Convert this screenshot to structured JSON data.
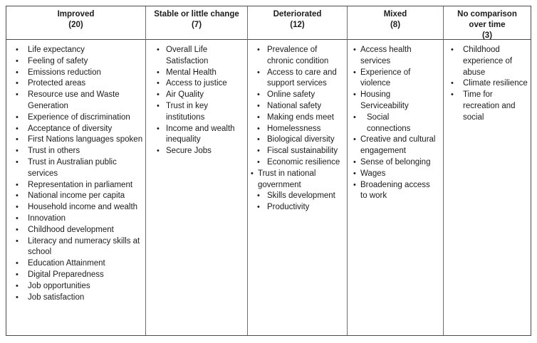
{
  "table": {
    "columns": [
      {
        "header": "Improved",
        "count": "(20)",
        "items": [
          "Life expectancy",
          "Feeling of safety",
          "Emissions reduction",
          "Protected areas",
          "Resource use and Waste Generation",
          "Experience of discrimination",
          "Acceptance of diversity",
          "First Nations languages spoken",
          "Trust in others",
          "Trust in Australian public services",
          "Representation in parliament",
          "National income per capita",
          "Household income and wealth",
          "Innovation",
          "Childhood development",
          "Literacy and numeracy skills at school",
          "Education Attainment",
          "Digital Preparedness",
          "Job opportunities",
          "Job satisfaction"
        ]
      },
      {
        "header": "Stable or little change",
        "count": "(7)",
        "items": [
          "Overall Life Satisfaction",
          "Mental Health",
          "Access to justice",
          "Air Quality",
          "Trust in key institutions",
          "Income and wealth inequality",
          "Secure Jobs"
        ]
      },
      {
        "header": "Deteriorated",
        "count": "(12)",
        "items": [
          "Prevalence of chronic condition",
          "Access to care and support services",
          "Online safety",
          "National safety",
          "Making ends meet",
          "Homelessness",
          "Biological diversity",
          "Fiscal sustainability",
          "Economic resilience",
          "Trust in national government",
          "Skills development",
          "Productivity"
        ]
      },
      {
        "header": "Mixed",
        "count": "(8)",
        "items": [
          "Access health services",
          "Experience of violence",
          "Housing Serviceability",
          "Social connections",
          "Creative and cultural engagement",
          "Sense of belonging",
          "Wages",
          "Broadening access to work"
        ]
      },
      {
        "header": "No comparison over time",
        "count": "(3)",
        "items": [
          "Childhood experience of abuse",
          "Climate resilience",
          "Time for recreation and social"
        ]
      }
    ]
  }
}
